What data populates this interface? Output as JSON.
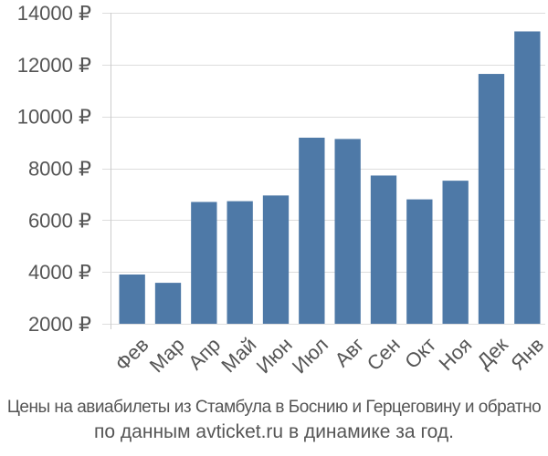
{
  "chart_data": {
    "type": "bar",
    "categories": [
      "Фев",
      "Мар",
      "Апр",
      "Май",
      "Июн",
      "Июл",
      "Авг",
      "Сен",
      "Окт",
      "Ноя",
      "Дек",
      "Янв"
    ],
    "values": [
      3900,
      3580,
      6700,
      6730,
      6950,
      9180,
      9130,
      7720,
      6800,
      7520,
      11640,
      13280
    ],
    "y_ticks": [
      2000,
      4000,
      6000,
      8000,
      10000,
      12000,
      14000
    ],
    "y_tick_labels": [
      "2000 ₽",
      "4000 ₽",
      "6000 ₽",
      "8000 ₽",
      "10000 ₽",
      "12000 ₽",
      "14000 ₽"
    ],
    "ylim": [
      2000,
      14000
    ],
    "grid": true,
    "bar_color": "#4e79a7",
    "grid_color": "#dddddd",
    "title": "",
    "xlabel": "",
    "ylabel": ""
  },
  "caption": {
    "line1": "Цены на авиабилеты из Стамбула в Боснию и Герцеговину и обратно",
    "line2": "по данным avticket.ru в динамике за год."
  }
}
